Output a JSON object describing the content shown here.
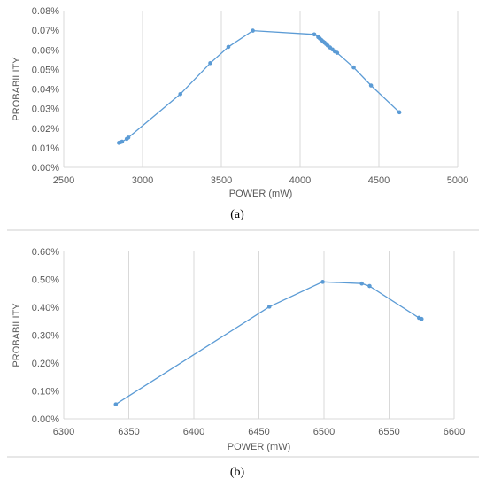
{
  "chart_data": [
    {
      "type": "line",
      "xlabel": "POWER (mW)",
      "ylabel": "PROBABILITY",
      "caption": "(a)",
      "xlim": [
        2500,
        5000
      ],
      "ylim": [
        0,
        0.08
      ],
      "xticks": [
        2500,
        3000,
        3500,
        4000,
        4500,
        5000
      ],
      "yticks": [
        0,
        0.01,
        0.02,
        0.03,
        0.04,
        0.05,
        0.06,
        0.07,
        0.08
      ],
      "ytick_labels": [
        "0.00%",
        "0.01%",
        "0.02%",
        "0.03%",
        "0.04%",
        "0.05%",
        "0.06%",
        "0.07%",
        "0.08%"
      ],
      "grid": "vertical",
      "series": [
        {
          "color": "#5b9bd5",
          "x": [
            2850,
            2860,
            2870,
            2900,
            2910,
            3240,
            3430,
            3545,
            3700,
            4090,
            4115,
            4125,
            4135,
            4145,
            4155,
            4165,
            4175,
            4190,
            4205,
            4220,
            4235,
            4340,
            4450,
            4630
          ],
          "y": [
            0.0125,
            0.0128,
            0.0131,
            0.0145,
            0.0152,
            0.0374,
            0.0532,
            0.0615,
            0.0698,
            0.0679,
            0.0665,
            0.0658,
            0.065,
            0.0643,
            0.0637,
            0.063,
            0.0622,
            0.0612,
            0.0602,
            0.0592,
            0.0585,
            0.051,
            0.0418,
            0.0281
          ]
        }
      ]
    },
    {
      "type": "line",
      "xlabel": "POWER (mW)",
      "ylabel": "PROBABILITY",
      "caption": "(b)",
      "xlim": [
        6300,
        6600
      ],
      "ylim": [
        0,
        0.006
      ],
      "xticks": [
        6300,
        6350,
        6400,
        6450,
        6500,
        6550,
        6600
      ],
      "yticks": [
        0,
        0.001,
        0.002,
        0.003,
        0.004,
        0.005,
        0.006
      ],
      "ytick_labels": [
        "0.00%",
        "0.10%",
        "0.20%",
        "0.30%",
        "0.40%",
        "0.50%",
        "0.60%"
      ],
      "grid": "vertical",
      "series": [
        {
          "color": "#5b9bd5",
          "x": [
            6340,
            6458,
            6499,
            6529,
            6535,
            6573,
            6575
          ],
          "y": [
            0.00052,
            0.00402,
            0.00491,
            0.00485,
            0.00476,
            0.00362,
            0.00358
          ]
        }
      ]
    }
  ]
}
